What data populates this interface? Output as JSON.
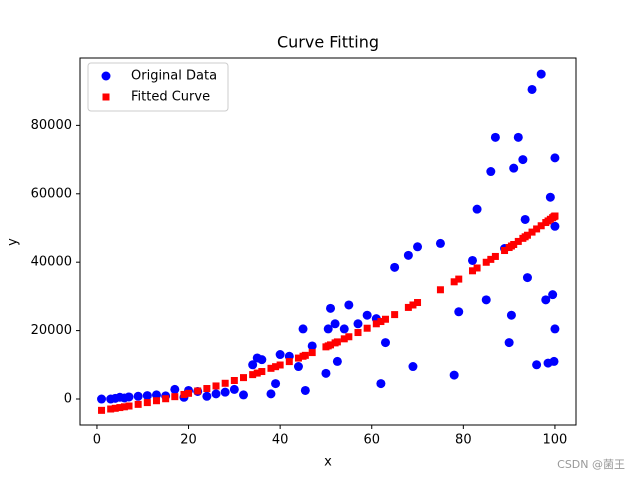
{
  "chart_data": {
    "type": "scatter",
    "title": "Curve Fitting",
    "xlabel": "x",
    "ylabel": "y",
    "watermark": "CSDN @菌王",
    "x": [
      1,
      3,
      4,
      5,
      6,
      7,
      9,
      11,
      13,
      15,
      17,
      19,
      20,
      22,
      24,
      26,
      28,
      30,
      32,
      34,
      35,
      36,
      38,
      39,
      40,
      42,
      44,
      45,
      45.5,
      47,
      50,
      50.5,
      51,
      52,
      52.5,
      54,
      55,
      57,
      59,
      61,
      62,
      63,
      65,
      68,
      69,
      70,
      75,
      78,
      79,
      82,
      83,
      85,
      86,
      87,
      89,
      90,
      90.5,
      91,
      92,
      93,
      93.5,
      94,
      95,
      96,
      97,
      98,
      98.5,
      99,
      99.5,
      99.8,
      100,
      100,
      100
    ],
    "series": [
      {
        "name": "Original Data",
        "color": "#0000ff",
        "marker": "circle",
        "values": [
          0,
          0,
          200,
          500,
          300,
          600,
          800,
          1000,
          1200,
          900,
          2800,
          500,
          2500,
          2200,
          800,
          1500,
          2000,
          2800,
          1200,
          10000,
          12000,
          11500,
          1500,
          4500,
          13000,
          12500,
          9500,
          20500,
          2500,
          15500,
          7500,
          20500,
          26500,
          22000,
          11000,
          20500,
          27500,
          22000,
          24500,
          23500,
          4500,
          16500,
          38500,
          42000,
          9500,
          44500,
          45500,
          7000,
          25500,
          40500,
          55500,
          29000,
          66500,
          76500,
          44000,
          16500,
          24500,
          67500,
          76500,
          70000,
          52500,
          35500,
          90500,
          10000,
          95000,
          29000,
          10500,
          59000,
          30500,
          11000,
          70500,
          50500,
          20500
        ]
      },
      {
        "name": "Fitted Curve",
        "color": "#ff0000",
        "marker": "square",
        "values": [
          -3316,
          -2925,
          -2718,
          -2502,
          -2280,
          -2049,
          -1564,
          -1048,
          -501,
          78,
          687,
          1328,
          1660,
          2348,
          3066,
          3816,
          4598,
          5410,
          6254,
          7128,
          7578,
          8034,
          8972,
          9452,
          9940,
          10940,
          11970,
          12498,
          12764,
          13575,
          15250,
          15536,
          15824,
          16406,
          16699,
          17592,
          18198,
          19431,
          20696,
          21992,
          22652,
          23319,
          24678,
          26774,
          27488,
          28210,
          31938,
          34268,
          35060,
          37484,
          38307,
          39978,
          40824,
          41679,
          43412,
          44290,
          44732,
          45176,
          46070,
          46971,
          47426,
          47880,
          48798,
          49722,
          50655,
          51596,
          52068,
          52544,
          53021,
          53310,
          53500,
          53500,
          53500
        ]
      }
    ],
    "xlim": [
      -3.7,
      104.6
    ],
    "xticks": [
      0,
      20,
      40,
      60,
      80,
      100
    ],
    "ylim": [
      -7600,
      99700
    ],
    "yticks": [
      0,
      20000,
      40000,
      60000,
      80000
    ],
    "legend": "upper left",
    "grid": false
  }
}
